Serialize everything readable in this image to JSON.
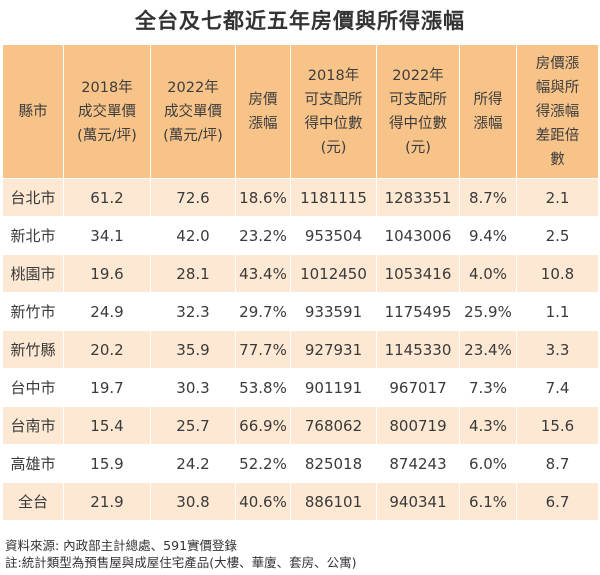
{
  "title": "全台及七都近五年房價與所得漲幅",
  "table": {
    "headers": [
      "縣市",
      "2018年\n成交單價\n(萬元/坪)",
      "2022年\n成交單價\n(萬元/坪)",
      "房價\n漲幅",
      "2018年\n可支配所\n得中位數\n(元)",
      "2022年\n可支配所\n得中位數\n(元)",
      "所得\n漲幅",
      "房價漲\n幅與所\n得漲幅\n差距倍\n數"
    ],
    "rows": [
      [
        "台北市",
        "61.2",
        "72.6",
        "18.6%",
        "1181115",
        "1283351",
        "8.7%",
        "2.1"
      ],
      [
        "新北市",
        "34.1",
        "42.0",
        "23.2%",
        "953504",
        "1043006",
        "9.4%",
        "2.5"
      ],
      [
        "桃園市",
        "19.6",
        "28.1",
        "43.4%",
        "1012450",
        "1053416",
        "4.0%",
        "10.8"
      ],
      [
        "新竹市",
        "24.9",
        "32.3",
        "29.7%",
        "933591",
        "1175495",
        "25.9%",
        "1.1"
      ],
      [
        "新竹縣",
        "20.2",
        "35.9",
        "77.7%",
        "927931",
        "1145330",
        "23.4%",
        "3.3"
      ],
      [
        "台中市",
        "19.7",
        "30.3",
        "53.8%",
        "901191",
        "967017",
        "7.3%",
        "7.4"
      ],
      [
        "台南市",
        "15.4",
        "25.7",
        "66.9%",
        "768062",
        "800719",
        "4.3%",
        "15.6"
      ],
      [
        "高雄市",
        "15.9",
        "24.2",
        "52.2%",
        "825018",
        "874243",
        "6.0%",
        "8.7"
      ],
      [
        "全台",
        "21.9",
        "30.8",
        "40.6%",
        "886101",
        "940341",
        "6.1%",
        "6.7"
      ]
    ]
  },
  "notes": {
    "source": "資料來源: 內政部主計總處、591實價登錄",
    "note": "註:統計類型為預售屋與成屋住宅產品(大樓、華廈、套房、公寓)"
  }
}
